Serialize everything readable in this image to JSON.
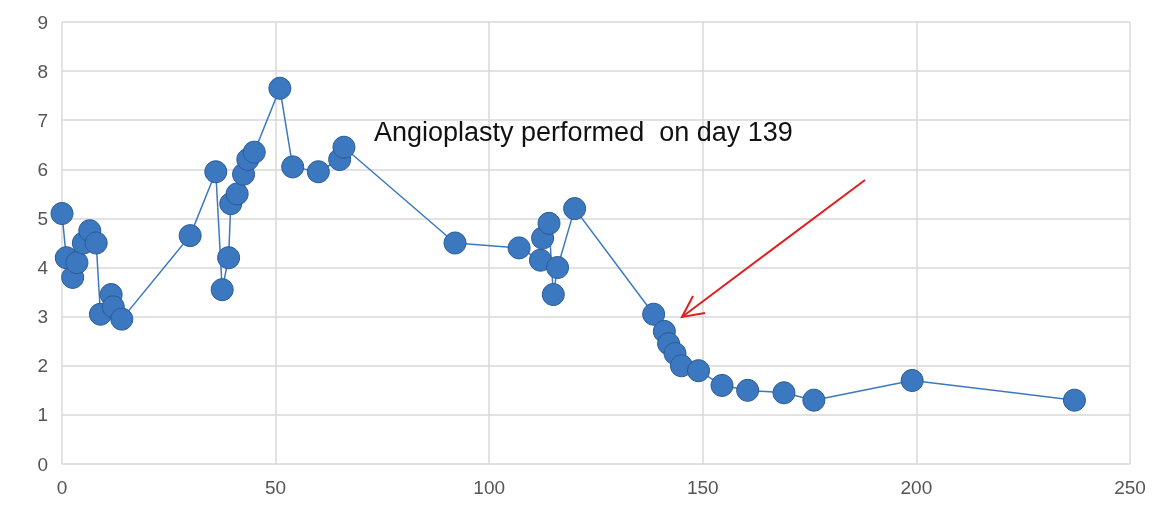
{
  "chart_data": {
    "type": "line",
    "x": [
      0,
      1,
      2.5,
      3.5,
      5,
      6.5,
      8,
      9,
      11.5,
      12,
      14,
      30,
      36,
      37.5,
      39,
      39.5,
      41,
      42.5,
      43.5,
      45,
      51,
      54,
      60,
      65,
      66,
      92,
      107,
      112,
      112.5,
      114,
      115,
      116,
      120,
      138.5,
      141,
      142,
      143.5,
      145,
      149,
      154.5,
      160.5,
      169,
      176,
      199,
      237
    ],
    "series": [
      {
        "color": "#3c78c0",
        "values": [
          5.1,
          4.2,
          3.8,
          4.1,
          4.5,
          4.75,
          4.5,
          3.05,
          3.45,
          3.2,
          2.95,
          4.65,
          5.95,
          3.55,
          4.2,
          5.3,
          5.5,
          5.9,
          6.2,
          6.35,
          7.65,
          6.05,
          5.95,
          6.2,
          6.45,
          4.5,
          4.4,
          4.15,
          4.6,
          4.9,
          3.45,
          4.0,
          5.2,
          3.05,
          2.7,
          2.45,
          2.25,
          2.0,
          1.9,
          1.6,
          1.5,
          1.45,
          1.3,
          1.7,
          1.3
        ]
      }
    ],
    "xlim": [
      0,
      250
    ],
    "xticks": [
      0,
      50,
      100,
      150,
      200,
      250
    ],
    "ylim": [
      0,
      9
    ],
    "yticks": [
      0,
      1,
      2,
      3,
      4,
      5,
      6,
      7,
      8,
      9
    ],
    "grid": true,
    "marker": "circle",
    "line_style": "solid",
    "annotations": [
      "Angioplasty performed  on day 139"
    ]
  }
}
